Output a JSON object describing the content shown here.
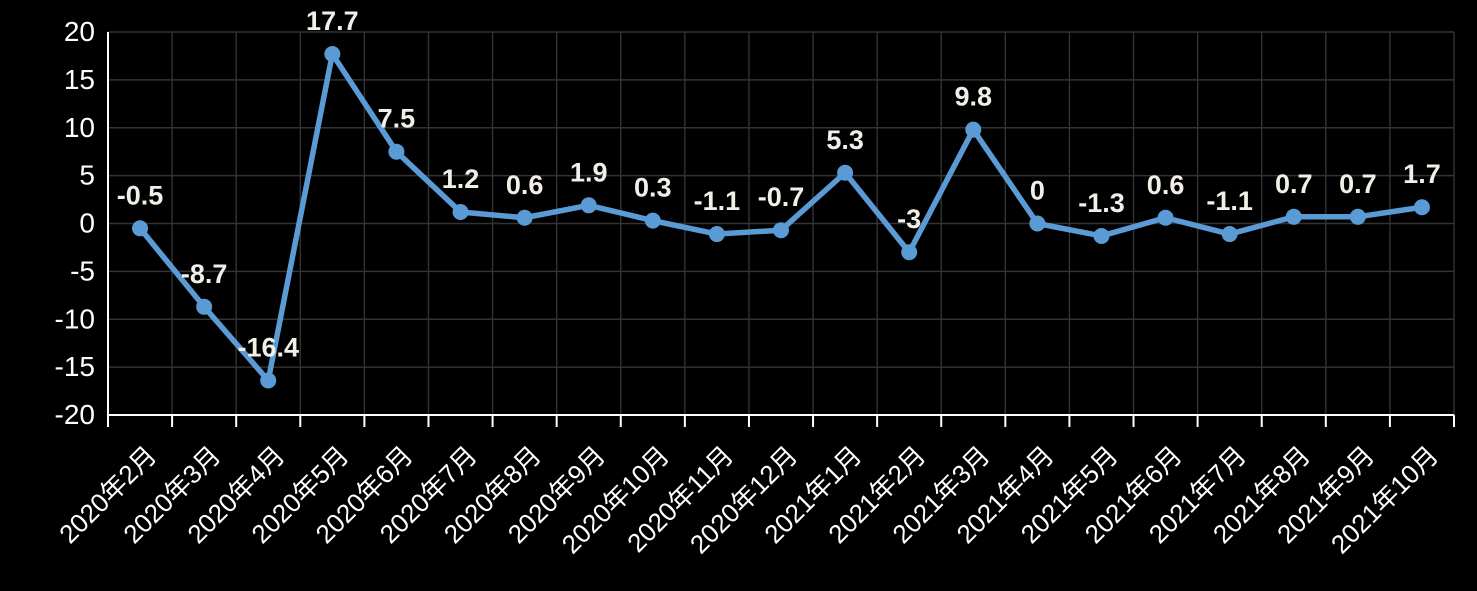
{
  "chart_data": {
    "type": "line",
    "title": "",
    "xlabel": "",
    "ylabel": "",
    "categories": [
      "2020年2月",
      "2020年3月",
      "2020年4月",
      "2020年5月",
      "2020年6月",
      "2020年7月",
      "2020年8月",
      "2020年9月",
      "2020年10月",
      "2020年11月",
      "2020年12月",
      "2021年1月",
      "2021年2月",
      "2021年3月",
      "2021年4月",
      "2021年5月",
      "2021年6月",
      "2021年7月",
      "2021年8月",
      "2021年9月",
      "2021年10月"
    ],
    "series": [
      {
        "name": "value",
        "values": [
          -0.5,
          -8.7,
          -16.4,
          17.7,
          7.5,
          1.2,
          0.6,
          1.9,
          0.3,
          -1.1,
          -0.7,
          5.3,
          -3,
          9.8,
          0,
          -1.3,
          0.6,
          -1.1,
          0.7,
          0.7,
          1.7
        ]
      }
    ],
    "point_labels": [
      "-0.5",
      "-8.7",
      "-16.4",
      "17.7",
      "7.5",
      "1.2",
      "0.6",
      "1.9",
      "0.3",
      "-1.1",
      "-0.7",
      "5.3",
      "-3",
      "9.8",
      "0",
      "-1.3",
      "0.6",
      "-1.1",
      "0.7",
      "0.7",
      "1.7"
    ],
    "ylim": [
      -20,
      20
    ],
    "yticks": [
      "20",
      "15",
      "10",
      "5",
      "0",
      "-5",
      "-10",
      "-15",
      "-20"
    ],
    "ytick_values": [
      20,
      15,
      10,
      5,
      0,
      -5,
      -10,
      -15,
      -20
    ],
    "x_tick_rotation": -45,
    "grid": true,
    "legend_position": "none",
    "colors": {
      "background": "#000000",
      "line": "#5b9bd5",
      "marker": "#5b9bd5",
      "grid": "#333333",
      "axis": "#ffffff",
      "tick": "#ffffff",
      "axis_label_text": "#ffffff",
      "data_label_text": "#f2efe9"
    }
  }
}
